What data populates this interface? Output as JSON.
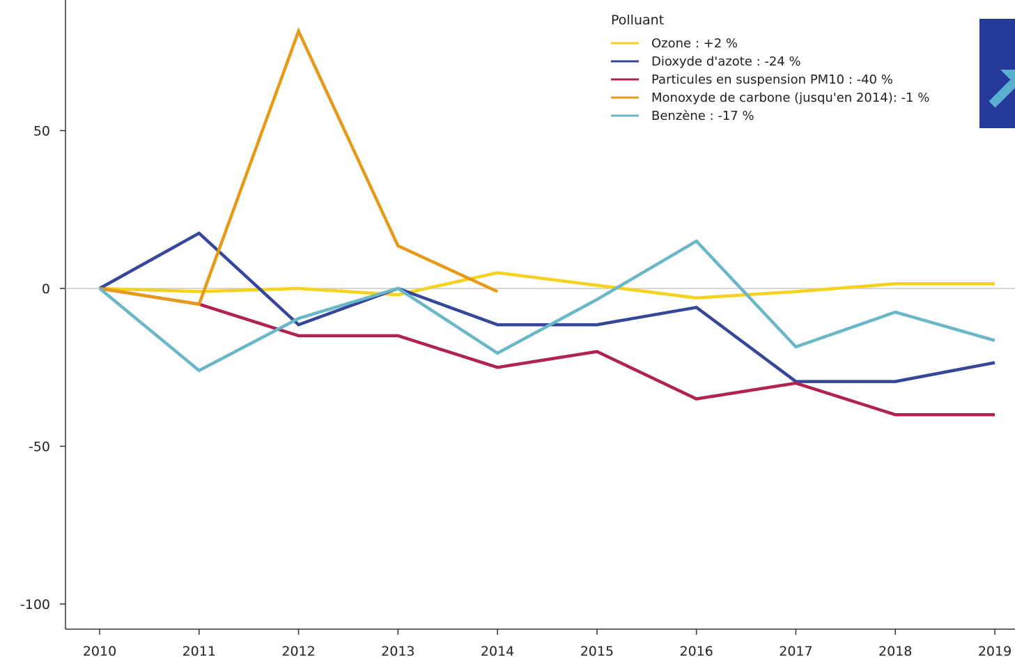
{
  "chart_data": {
    "type": "line",
    "x": [
      2010,
      2011,
      2012,
      2013,
      2014,
      2015,
      2016,
      2017,
      2018,
      2019
    ],
    "ylim": [
      -108,
      92
    ],
    "xlim": [
      2010,
      2019
    ],
    "yticks": [
      -100,
      -50,
      0,
      50
    ],
    "ytick_labels": [
      "-100",
      "-50",
      "0",
      "50"
    ],
    "xtick_labels": [
      "2010",
      "2011",
      "2012",
      "2013",
      "2014",
      "2015",
      "2016",
      "2017",
      "2018",
      "2019"
    ],
    "grid": false,
    "zero_line": true,
    "legend": {
      "title": "Polluant",
      "position": "top-right"
    },
    "series": [
      {
        "name": "Ozone : +2 %",
        "color": "#f5d21e",
        "values": [
          0,
          -1,
          0,
          -2,
          5,
          1,
          -3,
          -1,
          1.5,
          1.5
        ]
      },
      {
        "name": "Dioxyde d'azote : -24 %",
        "color": "#36479a",
        "values": [
          0,
          17.5,
          -11.5,
          0,
          -11.5,
          -11.5,
          -6,
          -29.5,
          -29.5,
          -23.5
        ]
      },
      {
        "name": "Particules en suspension PM10 : -40 %",
        "color": "#b0234e",
        "values": [
          0,
          -5,
          -15,
          -15,
          -25,
          -20,
          -35,
          -30,
          -40,
          -40
        ]
      },
      {
        "name": "Monoxyde de carbone (jusqu'en 2014): -1 %",
        "color": "#e69a1a",
        "values": [
          0,
          -5,
          81.5,
          13.5,
          -1,
          null,
          null,
          null,
          null,
          null
        ]
      },
      {
        "name": "Benzène : -17 %",
        "color": "#6ab7c9",
        "values": [
          0,
          -26,
          -9.5,
          0,
          -20.5,
          -3.5,
          15,
          -18.5,
          -7.5,
          -16.5
        ]
      }
    ]
  },
  "badge": {
    "background": "#24399a",
    "icon": "arrow-up-right-icon",
    "icon_color": "#5aaed0"
  }
}
